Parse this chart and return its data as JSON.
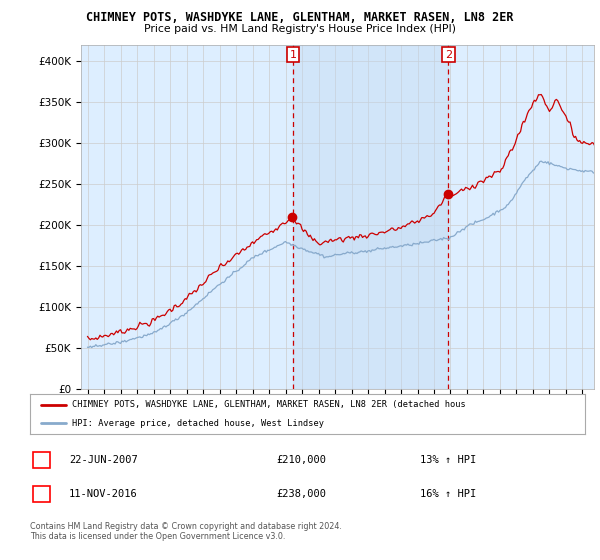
{
  "title": "CHIMNEY POTS, WASHDYKE LANE, GLENTHAM, MARKET RASEN, LN8 2ER",
  "subtitle": "Price paid vs. HM Land Registry's House Price Index (HPI)",
  "ylabel_ticks": [
    "£0",
    "£50K",
    "£100K",
    "£150K",
    "£200K",
    "£250K",
    "£300K",
    "£350K",
    "£400K"
  ],
  "ytick_vals": [
    0,
    50000,
    100000,
    150000,
    200000,
    250000,
    300000,
    350000,
    400000
  ],
  "ylim": [
    0,
    420000
  ],
  "legend_line1": "CHIMNEY POTS, WASHDYKE LANE, GLENTHAM, MARKET RASEN, LN8 2ER (detached hous",
  "legend_line2": "HPI: Average price, detached house, West Lindsey",
  "sale1_label": "1",
  "sale1_date": "22-JUN-2007",
  "sale1_price": "£210,000",
  "sale1_hpi": "13% ↑ HPI",
  "sale2_label": "2",
  "sale2_date": "11-NOV-2016",
  "sale2_price": "£238,000",
  "sale2_hpi": "16% ↑ HPI",
  "footer": "Contains HM Land Registry data © Crown copyright and database right 2024.\nThis data is licensed under the Open Government Licence v3.0.",
  "color_red": "#cc0000",
  "color_blue": "#88aacc",
  "color_grid": "#cccccc",
  "color_dashed": "#cc0000",
  "background_plot": "#ddeeff",
  "background_between": "#c8dff5",
  "background_fig": "#ffffff"
}
